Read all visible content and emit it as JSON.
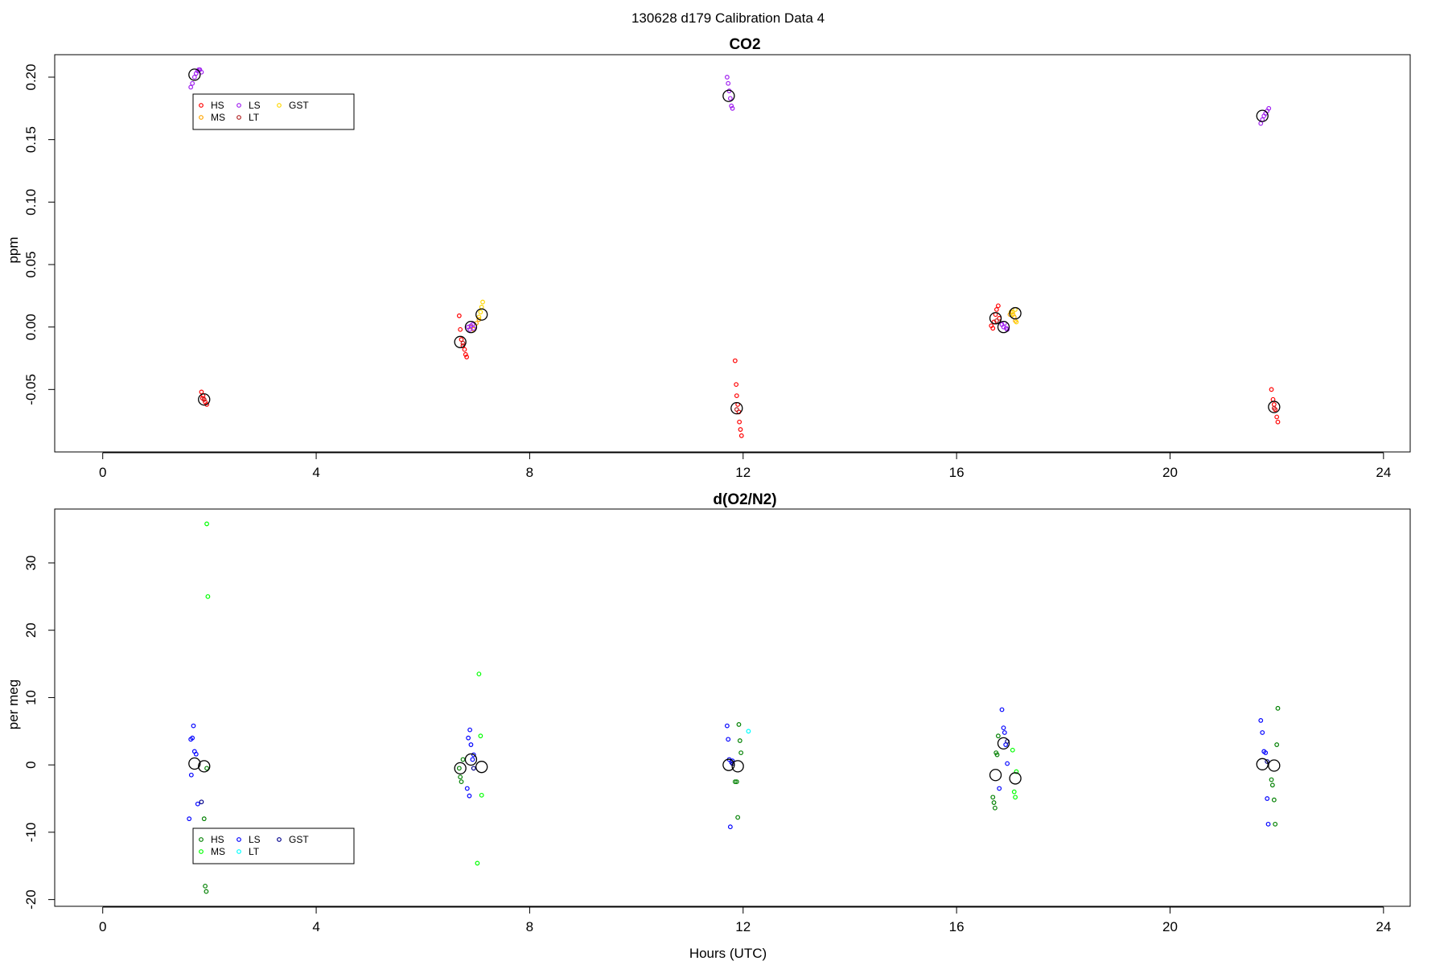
{
  "figure": {
    "suptitle": "130628   d179   Calibration Data 4",
    "xlabel": "Hours (UTC)"
  },
  "chart_data": [
    {
      "type": "scatter",
      "title": "CO2",
      "ylabel": "ppm",
      "xlim": [
        -0.9,
        24.5
      ],
      "ylim": [
        -0.1,
        0.218
      ],
      "xticks": [
        0,
        4,
        8,
        12,
        16,
        20,
        24
      ],
      "yticks": [
        -0.05,
        0.0,
        0.05,
        0.1,
        0.15,
        0.2
      ],
      "ytick_labels": [
        "-0.05",
        "0.00",
        "0.05",
        "0.10",
        "0.15",
        "0.20"
      ],
      "legend": {
        "position": "top-left",
        "entries": [
          "HS",
          "MS",
          "LS",
          "LT",
          "GST"
        ]
      },
      "series": [
        {
          "name": "HS",
          "color": "#ff0000",
          "points": [
            [
              1.85,
              -0.052
            ],
            [
              1.88,
              -0.055
            ],
            [
              1.9,
              -0.058
            ],
            [
              1.92,
              -0.06
            ],
            [
              1.95,
              -0.062
            ],
            [
              1.87,
              -0.057
            ],
            [
              6.68,
              0.009
            ],
            [
              6.7,
              -0.002
            ],
            [
              6.72,
              -0.01
            ],
            [
              6.75,
              -0.015
            ],
            [
              6.78,
              -0.018
            ],
            [
              6.8,
              -0.022
            ],
            [
              6.82,
              -0.024
            ],
            [
              11.85,
              -0.027
            ],
            [
              11.87,
              -0.046
            ],
            [
              11.88,
              -0.055
            ],
            [
              11.9,
              -0.062
            ],
            [
              11.92,
              -0.068
            ],
            [
              11.93,
              -0.076
            ],
            [
              11.95,
              -0.082
            ],
            [
              11.97,
              -0.087
            ],
            [
              16.65,
              0.001
            ],
            [
              16.68,
              -0.001
            ],
            [
              16.7,
              0.004
            ],
            [
              16.73,
              0.01
            ],
            [
              16.75,
              0.014
            ],
            [
              16.78,
              0.017
            ],
            [
              16.8,
              0.007
            ],
            [
              21.9,
              -0.05
            ],
            [
              21.93,
              -0.058
            ],
            [
              21.95,
              -0.062
            ],
            [
              21.97,
              -0.066
            ],
            [
              22.0,
              -0.072
            ],
            [
              22.02,
              -0.076
            ]
          ]
        },
        {
          "name": "MS",
          "color": "#ffa500",
          "points": [
            [
              6.9,
              0.0
            ],
            [
              6.95,
              -0.002
            ],
            [
              7.0,
              0.003
            ],
            [
              7.05,
              0.006
            ],
            [
              17.0,
              0.01
            ],
            [
              17.05,
              0.012
            ],
            [
              17.08,
              0.008
            ],
            [
              17.1,
              0.005
            ]
          ]
        },
        {
          "name": "LS",
          "color": "#a020f0",
          "points": [
            [
              1.65,
              0.192
            ],
            [
              1.68,
              0.195
            ],
            [
              1.72,
              0.2
            ],
            [
              1.75,
              0.203
            ],
            [
              1.78,
              0.205
            ],
            [
              1.8,
              0.206
            ],
            [
              1.82,
              0.206
            ],
            [
              1.85,
              0.204
            ],
            [
              6.85,
              0.0
            ],
            [
              6.88,
              -0.002
            ],
            [
              6.9,
              0.001
            ],
            [
              6.93,
              0.002
            ],
            [
              6.95,
              -0.001
            ],
            [
              11.7,
              0.2
            ],
            [
              11.72,
              0.195
            ],
            [
              11.74,
              0.189
            ],
            [
              11.76,
              0.183
            ],
            [
              11.78,
              0.177
            ],
            [
              11.8,
              0.175
            ],
            [
              16.85,
              0.002
            ],
            [
              16.88,
              0.0
            ],
            [
              16.9,
              0.003
            ],
            [
              16.93,
              -0.001
            ],
            [
              16.95,
              -0.002
            ],
            [
              21.7,
              0.163
            ],
            [
              21.73,
              0.166
            ],
            [
              21.76,
              0.169
            ],
            [
              21.79,
              0.171
            ],
            [
              21.82,
              0.173
            ],
            [
              21.85,
              0.175
            ]
          ]
        },
        {
          "name": "LT",
          "color": "#b22222",
          "points": [
            [
              1.9,
              -0.058
            ],
            [
              6.75,
              -0.013
            ],
            [
              11.88,
              -0.066
            ],
            [
              16.75,
              0.005
            ],
            [
              21.95,
              -0.065
            ]
          ]
        },
        {
          "name": "GST",
          "color": "#ffd700",
          "points": [
            [
              7.05,
              0.008
            ],
            [
              7.08,
              0.012
            ],
            [
              7.1,
              0.016
            ],
            [
              7.12,
              0.02
            ],
            [
              17.02,
              0.012
            ],
            [
              17.06,
              0.01
            ],
            [
              17.1,
              0.014
            ],
            [
              17.12,
              0.004
            ]
          ]
        }
      ],
      "means": [
        [
          1.72,
          0.202
        ],
        [
          1.9,
          -0.058
        ],
        [
          6.7,
          -0.012
        ],
        [
          6.9,
          0.0
        ],
        [
          7.1,
          0.01
        ],
        [
          11.73,
          0.185
        ],
        [
          11.88,
          -0.065
        ],
        [
          16.73,
          0.007
        ],
        [
          16.88,
          0.0
        ],
        [
          17.1,
          0.011
        ],
        [
          21.73,
          0.169
        ],
        [
          21.95,
          -0.064
        ]
      ]
    },
    {
      "type": "scatter",
      "title": "d(O2/N2)",
      "ylabel": "per meg",
      "xlim": [
        -0.9,
        24.5
      ],
      "ylim": [
        -21,
        38
      ],
      "xticks": [
        0,
        4,
        8,
        12,
        16,
        20,
        24
      ],
      "yticks": [
        -20,
        -10,
        0,
        10,
        20,
        30
      ],
      "ytick_labels": [
        "-20",
        "-10",
        "0",
        "10",
        "20",
        "30"
      ],
      "legend": {
        "position": "bottom-left",
        "entries": [
          "HS",
          "MS",
          "LS",
          "LT",
          "GST"
        ]
      },
      "series": [
        {
          "name": "HS",
          "color": "#008000",
          "points": [
            [
              1.9,
              -8.0
            ],
            [
              1.92,
              -18.0
            ],
            [
              1.94,
              -18.8
            ],
            [
              1.95,
              -0.5
            ],
            [
              6.68,
              -0.5
            ],
            [
              6.7,
              -1.8
            ],
            [
              6.72,
              -2.5
            ],
            [
              6.75,
              0.8
            ],
            [
              11.85,
              -2.5
            ],
            [
              11.88,
              -2.5
            ],
            [
              11.9,
              -7.8
            ],
            [
              11.92,
              6.0
            ],
            [
              11.94,
              3.6
            ],
            [
              11.96,
              1.8
            ],
            [
              16.68,
              -4.8
            ],
            [
              16.7,
              -5.6
            ],
            [
              16.72,
              -6.4
            ],
            [
              16.74,
              1.8
            ],
            [
              16.76,
              1.5
            ],
            [
              16.78,
              4.3
            ],
            [
              21.9,
              -2.2
            ],
            [
              21.92,
              -3.0
            ],
            [
              21.95,
              -5.2
            ],
            [
              21.97,
              -8.8
            ],
            [
              22.0,
              3.0
            ],
            [
              22.02,
              8.4
            ]
          ]
        },
        {
          "name": "MS",
          "color": "#00ff00",
          "points": [
            [
              1.95,
              35.8
            ],
            [
              1.97,
              25.0
            ],
            [
              7.05,
              13.5
            ],
            [
              7.08,
              4.3
            ],
            [
              7.1,
              -4.5
            ],
            [
              7.02,
              -14.6
            ],
            [
              17.05,
              2.2
            ],
            [
              17.08,
              -4.0
            ],
            [
              17.1,
              -4.8
            ],
            [
              17.12,
              -1.0
            ]
          ]
        },
        {
          "name": "LS",
          "color": "#0000ff",
          "points": [
            [
              1.65,
              3.8
            ],
            [
              1.68,
              4.0
            ],
            [
              1.7,
              5.8
            ],
            [
              1.72,
              2.0
            ],
            [
              1.75,
              1.6
            ],
            [
              1.78,
              -5.8
            ],
            [
              1.62,
              -8.0
            ],
            [
              1.66,
              -1.5
            ],
            [
              6.85,
              4.0
            ],
            [
              6.88,
              5.2
            ],
            [
              6.9,
              3.0
            ],
            [
              6.93,
              0.8
            ],
            [
              6.95,
              1.5
            ],
            [
              6.83,
              -3.5
            ],
            [
              6.87,
              -4.6
            ],
            [
              11.7,
              5.8
            ],
            [
              11.72,
              3.8
            ],
            [
              11.74,
              0.8
            ],
            [
              11.76,
              -9.2
            ],
            [
              11.78,
              0.4
            ],
            [
              11.8,
              0.6
            ],
            [
              16.85,
              8.2
            ],
            [
              16.88,
              5.5
            ],
            [
              16.9,
              4.8
            ],
            [
              16.92,
              3.0
            ],
            [
              16.8,
              -3.5
            ],
            [
              16.95,
              0.2
            ],
            [
              21.7,
              6.6
            ],
            [
              21.73,
              4.8
            ],
            [
              21.76,
              2.0
            ],
            [
              21.79,
              1.8
            ],
            [
              21.82,
              -5.0
            ],
            [
              21.84,
              -8.8
            ]
          ]
        },
        {
          "name": "LT",
          "color": "#00ffff",
          "points": [
            [
              12.1,
              5.0
            ]
          ]
        },
        {
          "name": "GST",
          "color": "#00008b",
          "points": [
            [
              1.85,
              -5.5
            ],
            [
              6.95,
              -0.5
            ],
            [
              11.8,
              0.2
            ],
            [
              16.95,
              3.5
            ],
            [
              21.82,
              0.5
            ]
          ]
        }
      ],
      "means": [
        [
          1.72,
          0.2
        ],
        [
          1.9,
          -0.2
        ],
        [
          6.7,
          -0.5
        ],
        [
          6.9,
          0.8
        ],
        [
          7.1,
          -0.3
        ],
        [
          11.73,
          0.0
        ],
        [
          11.9,
          -0.2
        ],
        [
          16.73,
          -1.5
        ],
        [
          16.88,
          3.2
        ],
        [
          17.1,
          -2.0
        ],
        [
          21.73,
          0.1
        ],
        [
          21.95,
          -0.1
        ]
      ]
    }
  ]
}
